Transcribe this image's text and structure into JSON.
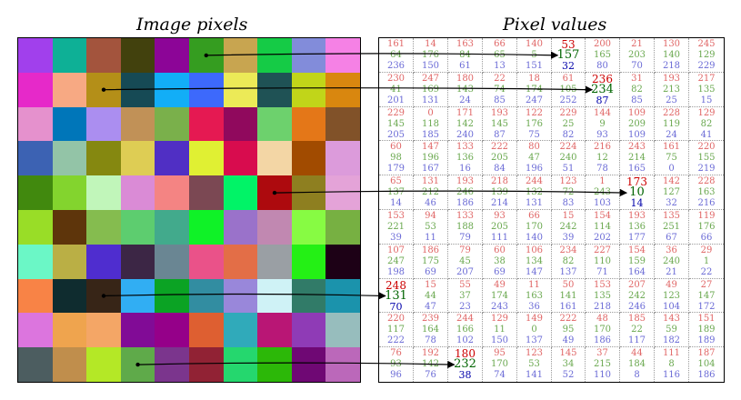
{
  "titles": {
    "left": "Image pixels",
    "right": "Pixel values"
  },
  "grid": {
    "rows": 10,
    "cols": 10,
    "pixels": [
      [
        [
          161,
          64,
          236
        ],
        [
          14,
          176,
          150
        ],
        [
          163,
          84,
          61
        ],
        [
          66,
          65,
          13
        ],
        [
          140,
          5,
          151
        ],
        [
          53,
          157,
          32
        ],
        [
          200,
          165,
          80
        ],
        [
          21,
          203,
          70
        ],
        [
          130,
          140,
          218
        ],
        [
          245,
          129,
          229
        ]
      ],
      [
        [
          230,
          41,
          201
        ],
        [
          247,
          169,
          131
        ],
        [
          180,
          143,
          24
        ],
        [
          22,
          74,
          85
        ],
        [
          18,
          174,
          247
        ],
        [
          61,
          105,
          252
        ],
        [
          236,
          234,
          87
        ],
        [
          31,
          82,
          85
        ],
        [
          193,
          213,
          25
        ],
        [
          217,
          135,
          15
        ]
      ],
      [
        [
          229,
          145,
          205
        ],
        [
          0,
          118,
          185
        ],
        [
          171,
          142,
          240
        ],
        [
          193,
          145,
          87
        ],
        [
          122,
          176,
          75
        ],
        [
          229,
          25,
          82
        ],
        [
          144,
          9,
          93
        ],
        [
          109,
          209,
          109
        ],
        [
          228,
          119,
          24
        ],
        [
          129,
          82,
          41
        ]
      ],
      [
        [
          60,
          98,
          179
        ],
        [
          147,
          196,
          167
        ],
        [
          133,
          136,
          16
        ],
        [
          222,
          205,
          84
        ],
        [
          80,
          47,
          196
        ],
        [
          224,
          240,
          51
        ],
        [
          216,
          12,
          78
        ],
        [
          243,
          214,
          165
        ],
        [
          161,
          75,
          0
        ],
        [
          220,
          155,
          219
        ]
      ],
      [
        [
          65,
          137,
          14
        ],
        [
          131,
          212,
          46
        ],
        [
          193,
          246,
          186
        ],
        [
          218,
          139,
          214
        ],
        [
          244,
          132,
          131
        ],
        [
          123,
          72,
          83
        ],
        [
          1,
          243,
          103
        ],
        [
          173,
          10,
          14
        ],
        [
          142,
          127,
          32
        ],
        [
          228,
          163,
          216
        ]
      ],
      [
        [
          153,
          221,
          39
        ],
        [
          94,
          53,
          11
        ],
        [
          133,
          188,
          79
        ],
        [
          93,
          205,
          111
        ],
        [
          66,
          170,
          140
        ],
        [
          15,
          242,
          39
        ],
        [
          154,
          114,
          202
        ],
        [
          193,
          136,
          177
        ],
        [
          135,
          251,
          67
        ],
        [
          119,
          176,
          66
        ]
      ],
      [
        [
          107,
          247,
          198
        ],
        [
          186,
          175,
          69
        ],
        [
          79,
          45,
          207
        ],
        [
          60,
          38,
          69
        ],
        [
          106,
          134,
          147
        ],
        [
          234,
          82,
          137
        ],
        [
          227,
          110,
          71
        ],
        [
          154,
          159,
          164
        ],
        [
          36,
          240,
          21
        ],
        [
          29,
          1,
          22
        ]
      ],
      [
        [
          248,
          131,
          70
        ],
        [
          15,
          44,
          47
        ],
        [
          55,
          37,
          23
        ],
        [
          49,
          174,
          243
        ],
        [
          11,
          163,
          36
        ],
        [
          50,
          141,
          161
        ],
        [
          153,
          135,
          218
        ],
        [
          207,
          242,
          246
        ],
        [
          49,
          123,
          104
        ],
        [
          27,
          147,
          172
        ]
      ],
      [
        [
          220,
          117,
          222
        ],
        [
          239,
          164,
          78
        ],
        [
          244,
          166,
          102
        ],
        [
          129,
          11,
          150
        ],
        [
          149,
          0,
          137
        ],
        [
          222,
          95,
          49
        ],
        [
          48,
          170,
          186
        ],
        [
          185,
          22,
          117
        ],
        [
          143,
          59,
          182
        ],
        [
          151,
          189,
          189
        ]
      ],
      [
        [
          76,
          93,
          96
        ],
        [
          192,
          142,
          76
        ],
        [
          180,
          232,
          38
        ],
        [
          95,
          170,
          74
        ],
        [
          123,
          53,
          141
        ],
        [
          145,
          34,
          52
        ],
        [
          37,
          215,
          110
        ],
        [
          44,
          184,
          8
        ],
        [
          111,
          8,
          116
        ],
        [
          187,
          104,
          186
        ]
      ]
    ],
    "highlighted": [
      [
        0,
        5
      ],
      [
        1,
        6
      ],
      [
        4,
        7
      ],
      [
        7,
        0
      ],
      [
        9,
        2
      ]
    ],
    "arrows": [
      [
        0,
        5,
        0,
        5
      ],
      [
        1,
        2,
        1,
        6
      ],
      [
        4,
        7,
        4,
        7
      ],
      [
        7,
        2,
        7,
        0
      ],
      [
        9,
        3,
        9,
        2
      ]
    ]
  }
}
